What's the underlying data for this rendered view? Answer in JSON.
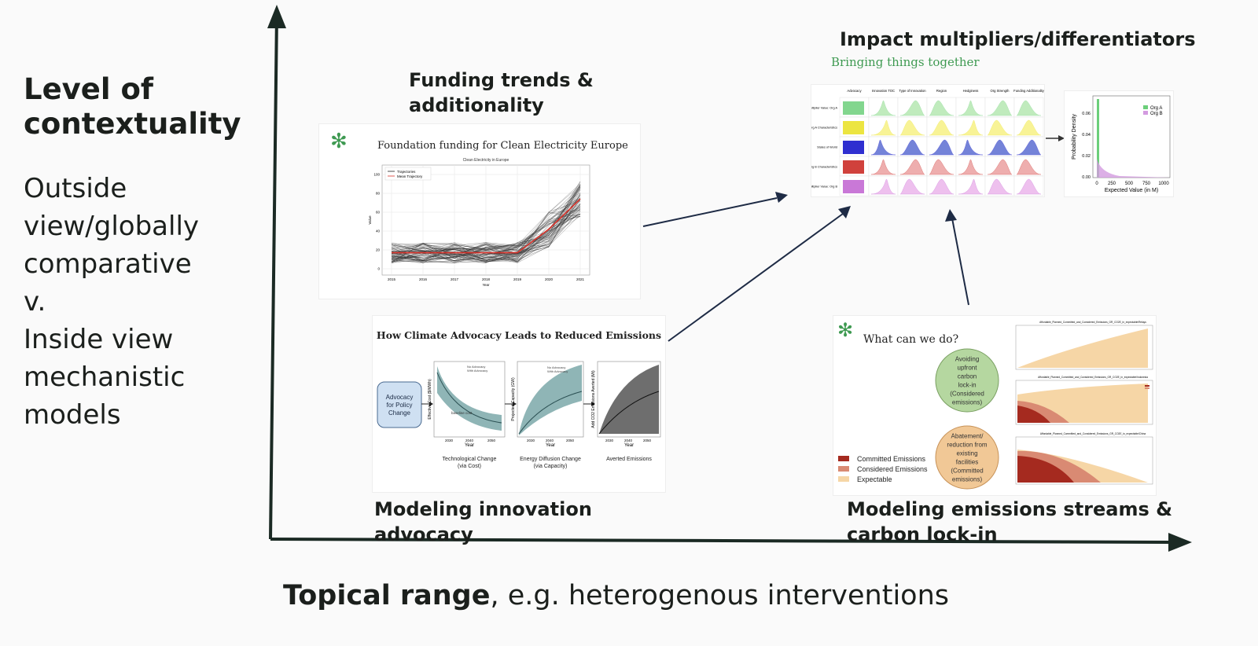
{
  "axes": {
    "y_title": "Level of contextuality",
    "y_lines": [
      "Outside",
      "view/globally",
      "comparative",
      "v.",
      "Inside view",
      "mechanistic",
      "models"
    ],
    "x_title_bold": "Topical range",
    "x_title_rest": ", e.g. heterogenous interventions"
  },
  "panels": {
    "funding": {
      "caption_lines": [
        "Funding trends &",
        "additionality"
      ],
      "card_title": "Foundation funding for Clean Electricity Europe",
      "plot_title": "Clean Electricity in Europe",
      "legend": [
        "Trajectories",
        "Mean Trajectory"
      ],
      "ylabel": "Value",
      "xlabel": "Year",
      "xticks": [
        "2015",
        "2016",
        "2017",
        "2018",
        "2019",
        "2020",
        "2021"
      ],
      "yticks": [
        "0",
        "20",
        "40",
        "60",
        "80",
        "100"
      ]
    },
    "advocacy": {
      "caption_lines": [
        "Modeling innovation",
        "advocacy"
      ],
      "card_title": "How Climate Advocacy Leads to Reduced Emissions",
      "box_label_lines": [
        "Advocacy",
        "for Policy",
        "Change"
      ],
      "charts": [
        {
          "caption_lines": [
            "Technological Change",
            "(via Cost)"
          ],
          "ylabel": "Effective Cost ($/MWh)",
          "legend": [
            "No Advocacy",
            "With Advocacy"
          ],
          "note": "baseline cost"
        },
        {
          "caption_lines": [
            "Energy Diffusion Change",
            "(via Capacity)"
          ],
          "ylabel": "Projected Capacity (GW)",
          "legend": [
            "No Advocacy",
            "With Advocacy"
          ]
        },
        {
          "caption_lines": [
            "Averted Emissions"
          ],
          "ylabel": "Add CO2 Emissions Averted (Mt)"
        }
      ],
      "xticks": [
        "2030",
        "2040",
        "2050"
      ],
      "xlabel": "Year"
    },
    "impact": {
      "caption": "Impact multipliers/differentiators",
      "subtitle": "Bringing things together",
      "columns": [
        "Advocacy",
        "Innovation TOC",
        "Type of Innovation",
        "Region",
        "Hedginess",
        "Org Strength",
        "Funding Additionality"
      ],
      "rows": [
        "Multiplier Value: Org A",
        "Org A Characteristics",
        "States of World",
        "Org B Characteristics",
        "Multiplier Value: Org B"
      ],
      "density_ylabel": "Probability Density",
      "density_xlabel": "Expected Value (in M)",
      "density_xticks": [
        "0",
        "250",
        "500",
        "750",
        "1000"
      ],
      "density_yticks": [
        "0.00",
        "0.02",
        "0.04",
        "0.06"
      ],
      "density_legend": [
        "Org A",
        "Org B"
      ]
    },
    "emissions": {
      "caption_lines": [
        "Modeling emissions streams &",
        "carbon lock-in"
      ],
      "card_title": "What can we do?",
      "bubble1_lines": [
        "Avoiding",
        "upfront",
        "carbon",
        "lock-in",
        "(Considered",
        "emissions)"
      ],
      "bubble2_lines": [
        "Abatement/",
        "reduction from",
        "existing",
        "facilities",
        "(Committed",
        "emissions)"
      ],
      "legend": [
        "Committed Emissions",
        "Considered Emissions",
        "Expectable"
      ],
      "chart_titles": [
        "Affordable_Planned_Committed_and_Considered_Emissions_GR_CO2E_in_expectable/Relays",
        "Affordable_Planned_Committed_and_Considered_Emissions_GR_CO2E_in_expectable/Indonesia",
        "Affordable_Planned_Committed_and_Considered_Emissions_GR_CO2E_in_expectable/China"
      ]
    }
  },
  "colors": {
    "axis": "#1b2a24",
    "green": "#3f9a52",
    "committed": "#a52a1f",
    "considered": "#d98a73",
    "expectable": "#f6d6a6"
  }
}
